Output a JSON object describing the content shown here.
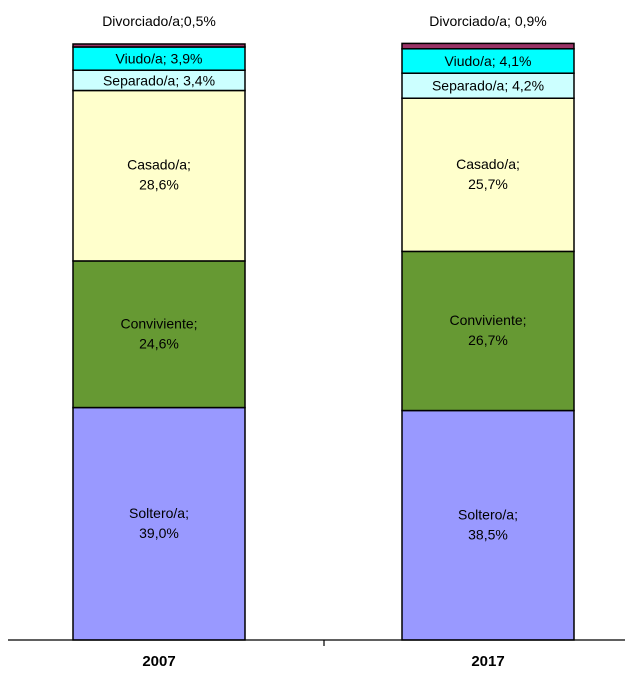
{
  "chart_data": {
    "type": "bar",
    "stacked": true,
    "categories": [
      "2007",
      "2017"
    ],
    "series": [
      {
        "name": "Soltero/a",
        "values": [
          39.0,
          38.5
        ],
        "color": "#9999ff"
      },
      {
        "name": "Conviviente",
        "values": [
          24.6,
          26.7
        ],
        "color": "#669933"
      },
      {
        "name": "Casado/a",
        "values": [
          28.6,
          25.7
        ],
        "color": "#ffffcc"
      },
      {
        "name": "Separado/a",
        "values": [
          3.4,
          4.2
        ],
        "color": "#ccffff"
      },
      {
        "name": "Viudo/a",
        "values": [
          3.9,
          4.1
        ],
        "color": "#00ffff"
      },
      {
        "name": "Divorciado/a",
        "values": [
          0.5,
          0.9
        ],
        "color": "#993366"
      }
    ],
    "data_labels": [
      [
        "Soltero/a;",
        "39,0%"
      ],
      [
        "Soltero/a;",
        "38,5%"
      ],
      [
        "Conviviente;",
        "24,6%"
      ],
      [
        "Conviviente;",
        "26,7%"
      ],
      [
        "Casado/a;",
        "28,6%"
      ],
      [
        "Casado/a;",
        "25,7%"
      ],
      [
        "Separado/a; 3,4%",
        "Separado/a; 4,2%"
      ],
      [
        "Viudo/a; 3,9%",
        "Viudo/a; 4,1%"
      ],
      [
        "Divorciado/a;0,5%",
        "Divorciado/a; 0,9%"
      ]
    ],
    "ylim": [
      0,
      100
    ],
    "grid": false,
    "legend": "none"
  }
}
